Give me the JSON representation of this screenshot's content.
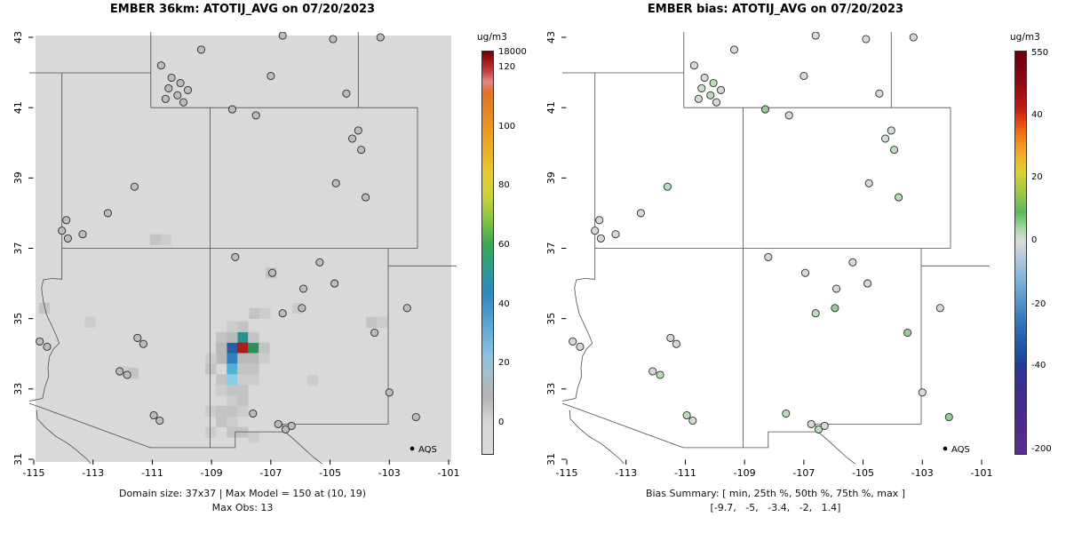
{
  "chart_data": [
    {
      "type": "heatmap",
      "title": "EMBER 36km: ATOTIJ_AVG on 07/20/2023",
      "captions": [
        "Domain size: 37x37 | Max Model = 150 at (10, 19)",
        "Max Obs: 13"
      ],
      "x_ticks": [
        -115,
        -113,
        -111,
        -109,
        -107,
        -105,
        -103,
        -101
      ],
      "y_ticks": [
        31,
        33,
        35,
        37,
        39,
        41,
        43
      ],
      "xlim": [
        -115.4,
        -100.6
      ],
      "ylim": [
        30.8,
        43.2
      ],
      "legend": "AQS",
      "station_fill": "#bcbcbc",
      "raster_bg": "#d9d9d9",
      "cell_size_deg": [
        0.36,
        0.3
      ],
      "domain_size": "37x37",
      "max_model": 150,
      "max_model_cell": "(10, 19)",
      "max_obs": 13,
      "colorbar": {
        "unit": "ug/m3",
        "ticks": [
          {
            "label": "18000",
            "pos": 0.004
          },
          {
            "label": "120",
            "pos": 0.04
          },
          {
            "label": "100",
            "pos": 0.187
          },
          {
            "label": "80",
            "pos": 0.333
          },
          {
            "label": "60",
            "pos": 0.48
          },
          {
            "label": "40",
            "pos": 0.627
          },
          {
            "label": "20",
            "pos": 0.773
          },
          {
            "label": "0",
            "pos": 0.92
          }
        ],
        "stops": [
          [
            0,
            "#67000d"
          ],
          [
            2,
            "#9e1317"
          ],
          [
            5,
            "#c44040"
          ],
          [
            7.5,
            "#de8a8a"
          ],
          [
            10,
            "#e2702a"
          ],
          [
            20,
            "#ec9b1f"
          ],
          [
            30,
            "#e8c832"
          ],
          [
            36,
            "#c8d23c"
          ],
          [
            42,
            "#84c341"
          ],
          [
            48,
            "#3aa655"
          ],
          [
            54,
            "#2a9d8f"
          ],
          [
            60,
            "#2e86c1"
          ],
          [
            68,
            "#5aa7d4"
          ],
          [
            76,
            "#8fc4e0"
          ],
          [
            80,
            "#a7bfc9"
          ],
          [
            86,
            "#b4b4b4"
          ],
          [
            92,
            "#d6d6d6"
          ],
          [
            100,
            "#dadada"
          ]
        ]
      },
      "cells": [
        [
          -107.95,
          34.47,
          "#2a8f8f"
        ],
        [
          -108.31,
          34.17,
          "#2a5f9e"
        ],
        [
          -107.95,
          34.17,
          "#a81d1d"
        ],
        [
          -107.59,
          34.17,
          "#2f8f5f"
        ],
        [
          -108.31,
          33.87,
          "#2f7fc0"
        ],
        [
          -108.31,
          33.57,
          "#55b0d8"
        ],
        [
          -108.31,
          33.27,
          "#88cce6"
        ],
        [
          -107.95,
          33.87,
          "#b9b9b9"
        ],
        [
          -107.95,
          33.57,
          "#c3c3c3"
        ],
        [
          -107.95,
          33.27,
          "#cccccc"
        ],
        [
          -108.67,
          34.47,
          "#c3c3c3"
        ],
        [
          -108.31,
          34.47,
          "#b9b9b9"
        ],
        [
          -107.59,
          34.47,
          "#c3c3c3"
        ],
        [
          -108.67,
          34.17,
          "#b9b9b9"
        ],
        [
          -107.23,
          34.17,
          "#c3c3c3"
        ],
        [
          -108.67,
          33.87,
          "#b9b9b9"
        ],
        [
          -107.59,
          33.87,
          "#b9b9b9"
        ],
        [
          -107.23,
          33.87,
          "#cccccc"
        ],
        [
          -109.03,
          33.87,
          "#cccccc"
        ],
        [
          -109.03,
          33.57,
          "#c3c3c3"
        ],
        [
          -107.59,
          33.57,
          "#c3c3c3"
        ],
        [
          -108.67,
          33.27,
          "#c3c3c3"
        ],
        [
          -107.59,
          33.27,
          "#cccccc"
        ],
        [
          -108.31,
          32.97,
          "#c3c3c3"
        ],
        [
          -107.95,
          32.97,
          "#c3c3c3"
        ],
        [
          -108.67,
          32.97,
          "#cccccc"
        ],
        [
          -108.31,
          32.67,
          "#cccccc"
        ],
        [
          -107.95,
          32.67,
          "#c3c3c3"
        ],
        [
          -109.03,
          32.37,
          "#cccccc"
        ],
        [
          -108.67,
          32.37,
          "#c3c3c3"
        ],
        [
          -108.31,
          32.37,
          "#c3c3c3"
        ],
        [
          -107.95,
          32.37,
          "#cccccc"
        ],
        [
          -108.67,
          32.07,
          "#c3c3c3"
        ],
        [
          -108.31,
          32.07,
          "#cccccc"
        ],
        [
          -108.31,
          31.77,
          "#c3c3c3"
        ],
        [
          -107.95,
          31.77,
          "#c3c3c3"
        ],
        [
          -109.03,
          31.77,
          "#cccccc"
        ],
        [
          -107.59,
          31.62,
          "#cccccc"
        ],
        [
          -107.95,
          34.77,
          "#c3c3c3"
        ],
        [
          -108.31,
          34.77,
          "#cccccc"
        ],
        [
          -110.9,
          37.25,
          "#c3c3c3"
        ],
        [
          -110.55,
          37.25,
          "#cccccc"
        ],
        [
          -107.0,
          36.3,
          "#c3c3c3"
        ],
        [
          -107.55,
          35.15,
          "#c3c3c3"
        ],
        [
          -107.2,
          35.15,
          "#cccccc"
        ],
        [
          -106.1,
          35.3,
          "#cccccc"
        ],
        [
          -103.6,
          34.9,
          "#c3c3c3"
        ],
        [
          -103.25,
          34.9,
          "#cccccc"
        ],
        [
          -114.65,
          35.3,
          "#c3c3c3"
        ],
        [
          -112.0,
          33.5,
          "#cccccc"
        ],
        [
          -111.65,
          33.45,
          "#c3c3c3"
        ],
        [
          -113.1,
          34.9,
          "#cccccc"
        ],
        [
          -105.6,
          33.25,
          "#cccccc"
        ]
      ]
    },
    {
      "type": "scatter",
      "title": "EMBER bias: ATOTIJ_AVG on 07/20/2023",
      "captions": [
        "Bias Summary: [ min, 25th %, 50th %, 75th %, max ]",
        "[-9.7,   -5,   -3.4,   -2,   1.4]"
      ],
      "x_ticks": [
        -115,
        -113,
        -111,
        -109,
        -107,
        -105,
        -103,
        -101
      ],
      "y_ticks": [
        31,
        33,
        35,
        37,
        39,
        41,
        43
      ],
      "xlim": [
        -115.4,
        -100.6
      ],
      "ylim": [
        30.8,
        43.2
      ],
      "legend": "AQS",
      "bias_summary": {
        "min": -9.7,
        "p25": -5,
        "p50": -3.4,
        "p75": -2,
        "max": 1.4
      },
      "colorbar": {
        "unit": "ug/m3",
        "ticks": [
          {
            "label": "550",
            "pos": 0.006
          },
          {
            "label": "40",
            "pos": 0.16
          },
          {
            "label": "20",
            "pos": 0.314
          },
          {
            "label": "0",
            "pos": 0.47
          },
          {
            "label": "-20",
            "pos": 0.627
          },
          {
            "label": "-40",
            "pos": 0.78
          },
          {
            "label": "-200",
            "pos": 0.985
          }
        ],
        "stops": [
          [
            0,
            "#67000d"
          ],
          [
            8,
            "#8f0a10"
          ],
          [
            14,
            "#c01a1a"
          ],
          [
            17,
            "#e04010"
          ],
          [
            21,
            "#ee7d18"
          ],
          [
            26,
            "#f2b02c"
          ],
          [
            30,
            "#d9d22f"
          ],
          [
            35,
            "#9cc94a"
          ],
          [
            40,
            "#5db75d"
          ],
          [
            44,
            "#a6d8a6"
          ],
          [
            47,
            "#d8dcd8"
          ],
          [
            51,
            "#b4cade"
          ],
          [
            57,
            "#7fb0d6"
          ],
          [
            63,
            "#4a8fc7"
          ],
          [
            69,
            "#2b6cb5"
          ],
          [
            75,
            "#1d4fa0"
          ],
          [
            78,
            "#253a96"
          ],
          [
            85,
            "#3d2d8f"
          ],
          [
            93,
            "#4f2a8c"
          ],
          [
            100,
            "#5b2d90"
          ]
        ]
      }
    }
  ],
  "stations": [
    [
      -110.7,
      42.2,
      "#d2dcd2"
    ],
    [
      -110.35,
      41.85,
      "#d2dcd2"
    ],
    [
      -110.05,
      41.7,
      "#b9dcb9"
    ],
    [
      -110.45,
      41.55,
      "#d2dcd2"
    ],
    [
      -110.15,
      41.35,
      "#b9dcb9"
    ],
    [
      -109.8,
      41.5,
      "#d2dcd2"
    ],
    [
      -110.55,
      41.25,
      "#d2dcd2"
    ],
    [
      -109.95,
      41.15,
      "#d2dcd2"
    ],
    [
      -107.0,
      41.9,
      "#d2dcd2"
    ],
    [
      -108.3,
      40.95,
      "#96cf96"
    ],
    [
      -107.5,
      40.78,
      "#d2dcd2"
    ],
    [
      -106.6,
      43.05,
      "#d2dcd2"
    ],
    [
      -104.9,
      42.95,
      "#d2dcd2"
    ],
    [
      -103.3,
      43.0,
      "#d2dcd2"
    ],
    [
      -109.35,
      42.65,
      "#d2dcd2"
    ],
    [
      -104.45,
      41.4,
      "#d2dcd2"
    ],
    [
      -104.05,
      40.35,
      "#d2dcd2"
    ],
    [
      -104.25,
      40.12,
      "#d2dcd2"
    ],
    [
      -103.95,
      39.8,
      "#b9dcb9"
    ],
    [
      -103.8,
      38.45,
      "#b9dcb9"
    ],
    [
      -104.8,
      38.85,
      "#d2dcd2"
    ],
    [
      -111.6,
      38.75,
      "#b9dcb9"
    ],
    [
      -112.5,
      38.0,
      "#d2dcd2"
    ],
    [
      -113.9,
      37.8,
      "#d2dcd2"
    ],
    [
      -114.05,
      37.5,
      "#d2dcd2"
    ],
    [
      -113.85,
      37.28,
      "#d2dcd2"
    ],
    [
      -113.35,
      37.4,
      "#d2dcd2"
    ],
    [
      -108.2,
      36.75,
      "#d2dcd2"
    ],
    [
      -106.95,
      36.3,
      "#d2dcd2"
    ],
    [
      -106.6,
      35.15,
      "#b9dcb9"
    ],
    [
      -105.9,
      35.85,
      "#d2dcd2"
    ],
    [
      -105.95,
      35.3,
      "#96cf96"
    ],
    [
      -104.85,
      36.0,
      "#d2dcd2"
    ],
    [
      -105.35,
      36.6,
      "#d2dcd2"
    ],
    [
      -111.5,
      34.45,
      "#d2dcd2"
    ],
    [
      -111.3,
      34.28,
      "#d2dcd2"
    ],
    [
      -112.1,
      33.5,
      "#d2dcd2"
    ],
    [
      -111.85,
      33.4,
      "#b9dcb9"
    ],
    [
      -110.95,
      32.25,
      "#b9dcb9"
    ],
    [
      -110.75,
      32.1,
      "#d2dcd2"
    ],
    [
      -114.8,
      34.35,
      "#d2dcd2"
    ],
    [
      -114.55,
      34.2,
      "#d2dcd2"
    ],
    [
      -107.6,
      32.3,
      "#b9dcb9"
    ],
    [
      -106.75,
      32.0,
      "#d2dcd2"
    ],
    [
      -106.5,
      31.85,
      "#b9dcb9"
    ],
    [
      -106.3,
      31.95,
      "#d2dcd2"
    ],
    [
      -103.0,
      32.9,
      "#d2dcd2"
    ],
    [
      -102.4,
      35.3,
      "#d2dcd2"
    ],
    [
      -102.1,
      32.2,
      "#96cf96"
    ],
    [
      -103.5,
      34.6,
      "#96cf96"
    ]
  ],
  "geo": {
    "borders": [
      {
        "name": "idaho-42n",
        "pts": [
          [
            -115.5,
            41.99
          ],
          [
            -111.05,
            41.99
          ]
        ]
      },
      {
        "name": "nv-ut-az-114w",
        "pts": [
          [
            -114.05,
            41.99
          ],
          [
            -114.05,
            36.12
          ]
        ]
      },
      {
        "name": "colorado-river",
        "pts": [
          [
            -114.05,
            36.12
          ],
          [
            -114.4,
            36.14
          ],
          [
            -114.68,
            36.1
          ],
          [
            -114.74,
            35.87
          ],
          [
            -114.68,
            35.5
          ],
          [
            -114.57,
            35.12
          ],
          [
            -114.26,
            34.56
          ],
          [
            -114.14,
            34.3
          ],
          [
            -114.33,
            34.14
          ],
          [
            -114.47,
            33.93
          ],
          [
            -114.52,
            33.6
          ],
          [
            -114.5,
            33.35
          ],
          [
            -114.63,
            33.03
          ],
          [
            -114.7,
            32.73
          ]
        ]
      },
      {
        "name": "ca-mexico",
        "pts": [
          [
            -114.7,
            32.73
          ],
          [
            -115.5,
            32.6
          ]
        ]
      },
      {
        "name": "41n",
        "pts": [
          [
            -111.05,
            41.0
          ],
          [
            -102.05,
            41.0
          ]
        ]
      },
      {
        "name": "wy-ut-111w",
        "pts": [
          [
            -111.05,
            43.2
          ],
          [
            -111.05,
            41.0
          ]
        ]
      },
      {
        "name": "37n",
        "pts": [
          [
            -114.05,
            37.0
          ],
          [
            -102.05,
            37.0
          ]
        ]
      },
      {
        "name": "109w",
        "pts": [
          [
            -109.05,
            41.0
          ],
          [
            -109.05,
            31.33
          ]
        ]
      },
      {
        "name": "co-ks-102w",
        "pts": [
          [
            -102.05,
            41.0
          ],
          [
            -102.05,
            37.0
          ]
        ]
      },
      {
        "name": "wy-ne-104w",
        "pts": [
          [
            -104.05,
            43.2
          ],
          [
            -104.05,
            41.0
          ]
        ]
      },
      {
        "name": "nm-tx-103w",
        "pts": [
          [
            -103.04,
            37.0
          ],
          [
            -103.04,
            32.0
          ]
        ]
      },
      {
        "name": "nm-tx-32n",
        "pts": [
          [
            -103.04,
            32.0
          ],
          [
            -106.62,
            32.0
          ]
        ]
      },
      {
        "name": "tx-ok-36half",
        "pts": [
          [
            -103.04,
            36.5
          ],
          [
            -100.5,
            36.5
          ]
        ]
      },
      {
        "name": "rio-grande",
        "pts": [
          [
            -106.62,
            32.0
          ],
          [
            -106.55,
            31.8
          ],
          [
            -106.2,
            31.55
          ],
          [
            -105.55,
            31.05
          ],
          [
            -105.0,
            30.7
          ]
        ]
      },
      {
        "name": "nm-mexico",
        "pts": [
          [
            -106.53,
            31.78
          ],
          [
            -108.2,
            31.78
          ],
          [
            -108.2,
            31.33
          ],
          [
            -111.07,
            31.33
          ]
        ]
      },
      {
        "name": "az-mexico",
        "pts": [
          [
            -111.07,
            31.33
          ],
          [
            -114.81,
            32.49
          ],
          [
            -115.5,
            32.69
          ]
        ]
      },
      {
        "name": "sonora-coast",
        "pts": [
          [
            -114.9,
            32.4
          ],
          [
            -114.88,
            32.15
          ],
          [
            -114.6,
            31.9
          ],
          [
            -114.25,
            31.65
          ],
          [
            -113.85,
            31.45
          ],
          [
            -113.55,
            31.25
          ],
          [
            -113.2,
            31.0
          ],
          [
            -113.0,
            30.8
          ]
        ]
      }
    ]
  }
}
